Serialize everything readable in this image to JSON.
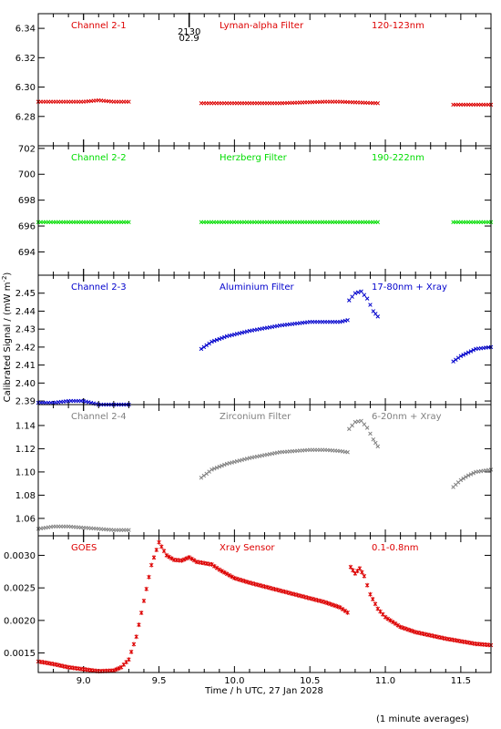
{
  "figure": {
    "xlabel": "Time / h UTC, 27 Jan 2028",
    "ylabel": "Calibrated Signal / (mW m",
    "ylabel_sup": "-2",
    "ylabel_close": ")",
    "footnote": "(1 minute averages)",
    "marker": {
      "label_top": "2130",
      "label_bottom": "02.9",
      "x": 9.7
    }
  },
  "chart_data": [
    {
      "type": "scatter",
      "labels": [
        "Channel 2-1",
        "Lyman-alpha Filter",
        "120-123nm"
      ],
      "color": "#dd0000",
      "marker_symbol": "x",
      "xlim": [
        8.7,
        11.7
      ],
      "ylim": [
        6.26,
        6.35
      ],
      "yticks": [
        6.28,
        6.3,
        6.32,
        6.34
      ],
      "ytick_labels": [
        "6.28",
        "6.30",
        "6.32",
        "6.34"
      ],
      "segments": [
        {
          "x": [
            8.7,
            8.9,
            9.0,
            9.1,
            9.2,
            9.3
          ],
          "y": [
            6.29,
            6.29,
            6.29,
            6.291,
            6.29,
            6.29
          ]
        },
        {
          "x": [
            9.78,
            10.0,
            10.3,
            10.6,
            10.7,
            10.95
          ],
          "y": [
            6.289,
            6.289,
            6.289,
            6.29,
            6.29,
            6.289
          ]
        },
        {
          "x": [
            11.45,
            11.6,
            11.7
          ],
          "y": [
            6.288,
            6.288,
            6.288
          ]
        }
      ]
    },
    {
      "type": "scatter",
      "labels": [
        "Channel 2-2",
        "Herzberg Filter",
        "190-222nm"
      ],
      "color": "#00dd00",
      "marker_symbol": "x",
      "xlim": [
        8.7,
        11.7
      ],
      "ylim": [
        692.2,
        702.2
      ],
      "yticks": [
        694,
        696,
        698,
        700,
        702
      ],
      "ytick_labels": [
        "694",
        "696",
        "698",
        "700",
        "702"
      ],
      "segments": [
        {
          "x": [
            8.7,
            9.0,
            9.3
          ],
          "y": [
            696.3,
            696.3,
            696.3
          ]
        },
        {
          "x": [
            9.78,
            10.3,
            10.95
          ],
          "y": [
            696.3,
            696.3,
            696.3
          ]
        },
        {
          "x": [
            11.45,
            11.7
          ],
          "y": [
            696.3,
            696.3
          ]
        }
      ]
    },
    {
      "type": "scatter",
      "labels": [
        "Channel 2-3",
        "Aluminium Filter",
        "17-80nm + Xray"
      ],
      "color": "#0000cc",
      "marker_symbol": "x",
      "xlim": [
        8.7,
        11.7
      ],
      "ylim": [
        2.388,
        2.46
      ],
      "yticks": [
        2.39,
        2.4,
        2.41,
        2.42,
        2.43,
        2.44,
        2.45
      ],
      "ytick_labels": [
        "2.39",
        "2.40",
        "2.41",
        "2.42",
        "2.43",
        "2.44",
        "2.45"
      ],
      "segments": [
        {
          "x": [
            8.7,
            8.8,
            8.9,
            9.0,
            9.05,
            9.1,
            9.2,
            9.3
          ],
          "y": [
            2.389,
            2.389,
            2.39,
            2.39,
            2.389,
            2.388,
            2.388,
            2.388
          ]
        },
        {
          "x": [
            9.78,
            9.85,
            9.95,
            10.1,
            10.3,
            10.5,
            10.6,
            10.7,
            10.75
          ],
          "y": [
            2.419,
            2.423,
            2.426,
            2.429,
            2.432,
            2.434,
            2.434,
            2.434,
            2.435
          ]
        },
        {
          "x": [
            10.76,
            10.8,
            10.84,
            10.88,
            10.92,
            10.95
          ],
          "y": [
            2.446,
            2.45,
            2.451,
            2.447,
            2.44,
            2.437
          ]
        },
        {
          "x": [
            11.45,
            11.5,
            11.55,
            11.6,
            11.7
          ],
          "y": [
            2.412,
            2.415,
            2.417,
            2.419,
            2.42
          ]
        }
      ]
    },
    {
      "type": "scatter",
      "labels": [
        "Channel 2-4",
        "Zirconium Filter",
        "6-20nm + Xray"
      ],
      "color": "#808080",
      "marker_symbol": "x",
      "xlim": [
        8.7,
        11.7
      ],
      "ylim": [
        1.045,
        1.158
      ],
      "yticks": [
        1.06,
        1.08,
        1.1,
        1.12,
        1.14
      ],
      "ytick_labels": [
        "1.06",
        "1.08",
        "1.10",
        "1.12",
        "1.14"
      ],
      "segments": [
        {
          "x": [
            8.7,
            8.8,
            8.9,
            9.0,
            9.1,
            9.2,
            9.3
          ],
          "y": [
            1.051,
            1.053,
            1.053,
            1.052,
            1.051,
            1.05,
            1.05
          ]
        },
        {
          "x": [
            9.78,
            9.85,
            9.95,
            10.1,
            10.3,
            10.5,
            10.6,
            10.7,
            10.75
          ],
          "y": [
            1.095,
            1.102,
            1.107,
            1.112,
            1.117,
            1.119,
            1.119,
            1.118,
            1.117
          ]
        },
        {
          "x": [
            10.76,
            10.8,
            10.84,
            10.88,
            10.92,
            10.95
          ],
          "y": [
            1.137,
            1.143,
            1.144,
            1.138,
            1.128,
            1.122
          ]
        },
        {
          "x": [
            11.45,
            11.5,
            11.55,
            11.6,
            11.7
          ],
          "y": [
            1.087,
            1.093,
            1.097,
            1.1,
            1.102
          ]
        }
      ]
    },
    {
      "type": "scatter",
      "labels": [
        "GOES",
        "Xray Sensor",
        "0.1-0.8nm"
      ],
      "color": "#dd0000",
      "marker_symbol": "*",
      "xlim": [
        8.7,
        11.7
      ],
      "ylim": [
        0.0012,
        0.0033
      ],
      "yticks": [
        0.0015,
        0.002,
        0.0025,
        0.003
      ],
      "ytick_labels": [
        "0.0015",
        "0.0020",
        "0.0025",
        "0.0030"
      ],
      "xticks": [
        9.0,
        9.5,
        10.0,
        10.5,
        11.0,
        11.5
      ],
      "xtick_labels": [
        "9.0",
        "9.5",
        "10.0",
        "10.5",
        "11.0",
        "11.5"
      ],
      "segments": [
        {
          "x": [
            8.7,
            8.8,
            8.9,
            9.0,
            9.1,
            9.2,
            9.25,
            9.3,
            9.35,
            9.4,
            9.45,
            9.5,
            9.55,
            9.6,
            9.65,
            9.7,
            9.75,
            9.8,
            9.85,
            9.9,
            10.0,
            10.1,
            10.2,
            10.3,
            10.4,
            10.5,
            10.6,
            10.7,
            10.75
          ],
          "y": [
            0.00137,
            0.00133,
            0.00128,
            0.00125,
            0.00122,
            0.00123,
            0.00128,
            0.0014,
            0.00175,
            0.0023,
            0.00285,
            0.0032,
            0.003,
            0.00293,
            0.00292,
            0.00297,
            0.0029,
            0.00288,
            0.00286,
            0.00278,
            0.00265,
            0.00258,
            0.00252,
            0.00246,
            0.0024,
            0.00234,
            0.00228,
            0.0022,
            0.00212
          ]
        },
        {
          "x": [
            10.77,
            10.8,
            10.83,
            10.86,
            10.9,
            10.95,
            11.0,
            11.1,
            11.2,
            11.3,
            11.4,
            11.5,
            11.6,
            11.7
          ],
          "y": [
            0.00282,
            0.00272,
            0.0028,
            0.00268,
            0.0024,
            0.00218,
            0.00205,
            0.0019,
            0.00182,
            0.00177,
            0.00172,
            0.00168,
            0.00164,
            0.00162
          ]
        }
      ]
    }
  ]
}
